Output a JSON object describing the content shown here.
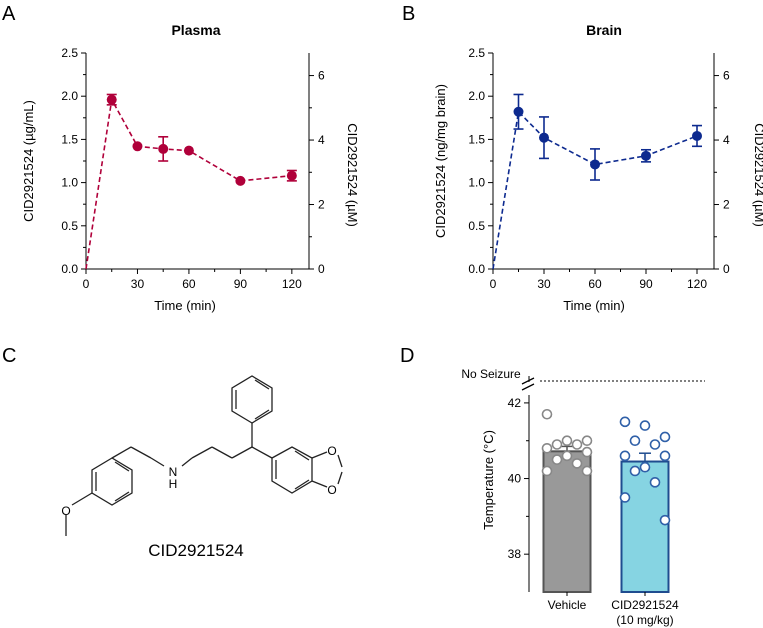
{
  "panels": {
    "a": {
      "letter": "A"
    },
    "b": {
      "letter": "B"
    },
    "c": {
      "letter": "C"
    },
    "d": {
      "letter": "D"
    }
  },
  "chart_data": [
    {
      "type": "line",
      "title": "Plasma",
      "xlabel": "Time (min)",
      "ylabel": "CID2921524 (µg/mL)",
      "y2label": "CID2921524 (µM)",
      "xlim": [
        0,
        130
      ],
      "ylim": [
        0,
        2.5
      ],
      "y2lim": [
        0,
        6.7
      ],
      "xticks": [
        "0",
        "30",
        "60",
        "90",
        "120"
      ],
      "yticks": [
        "0.0",
        "0.5",
        "1.0",
        "1.5",
        "2.0",
        "2.5"
      ],
      "y2ticks": [
        "0",
        "2",
        "4",
        "6"
      ],
      "color": "#b0003a",
      "line_style": "dashed",
      "x": [
        0,
        15,
        30,
        45,
        60,
        90,
        120
      ],
      "y": [
        0,
        1.96,
        1.42,
        1.39,
        1.37,
        1.02,
        1.08
      ],
      "error": [
        0,
        0.06,
        0,
        0.14,
        0,
        0,
        0.06
      ],
      "grid": false
    },
    {
      "type": "line",
      "title": "Brain",
      "xlabel": "Time (min)",
      "ylabel": "CID2921524 (ng/mg brain)",
      "y2label": "CID2921524 (µM)",
      "xlim": [
        0,
        130
      ],
      "ylim": [
        0,
        2.5
      ],
      "y2lim": [
        0,
        6.7
      ],
      "xticks": [
        "0",
        "30",
        "60",
        "90",
        "120"
      ],
      "yticks": [
        "0.0",
        "0.5",
        "1.0",
        "1.5",
        "2.0",
        "2.5"
      ],
      "y2ticks": [
        "0",
        "2",
        "4",
        "6"
      ],
      "color": "#0d2a8f",
      "line_style": "dashed",
      "x": [
        0,
        15,
        30,
        60,
        90,
        120
      ],
      "y": [
        0,
        1.82,
        1.52,
        1.21,
        1.31,
        1.54
      ],
      "error": [
        0,
        0.2,
        0.24,
        0.18,
        0.07,
        0.12
      ],
      "grid": false
    },
    {
      "type": "bar",
      "ylabel": "Temperature  (°C)",
      "ylim": [
        37,
        42.5
      ],
      "yticks": [
        "38",
        "40",
        "42"
      ],
      "annotation": "No Seizure",
      "categories": [
        {
          "name": "Vehicle"
        },
        {
          "name": "CID2921524",
          "sub": "(10 mg/kg)"
        }
      ],
      "series": [
        {
          "mean": 40.72,
          "sem": 0.13,
          "fill": "#999999",
          "edge": "#555555",
          "point_color": "#888888",
          "points": [
            41.7,
            41.0,
            41.0,
            40.9,
            40.9,
            40.8,
            40.7,
            40.6,
            40.5,
            40.4,
            40.2,
            40.2
          ]
        },
        {
          "mean": 40.45,
          "sem": 0.22,
          "fill": "#86d4e2",
          "edge": "#1f4c8f",
          "point_color": "#3060a8",
          "points": [
            41.5,
            41.4,
            41.1,
            41.0,
            40.9,
            40.6,
            40.6,
            40.3,
            40.2,
            39.9,
            39.5,
            38.9
          ]
        }
      ]
    }
  ],
  "structure": {
    "name": "CID2921524",
    "atom_labels": {
      "n": "N",
      "h": "H",
      "o": "O"
    }
  }
}
